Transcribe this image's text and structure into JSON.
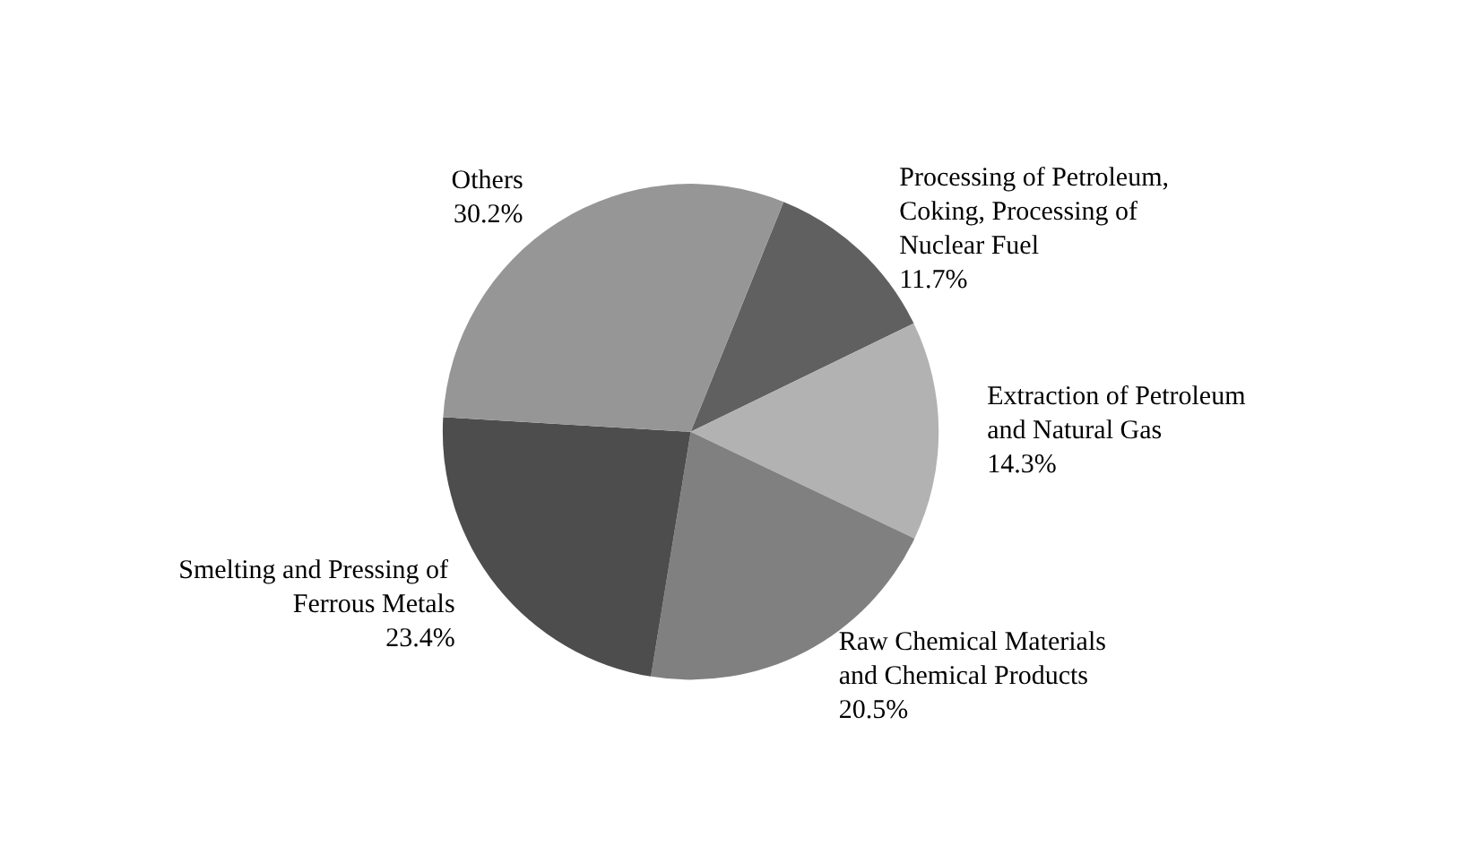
{
  "chart_data": {
    "type": "pie",
    "categories": [
      "Processing of Petroleum, Coking, Processing of Nuclear Fuel",
      "Extraction of Petroleum and Natural Gas",
      "Raw Chemical Materials and Chemical Products",
      "Smelting and Pressing of Ferrous Metals",
      "Others"
    ],
    "values": [
      11.7,
      14.3,
      20.5,
      23.4,
      30.2
    ],
    "colors": [
      "#606060",
      "#b2b2b2",
      "#808080",
      "#4d4d4d",
      "#969696"
    ],
    "value_labels": [
      "11.7%",
      "14.3%",
      "20.5%",
      "23.4%",
      "30.2%"
    ],
    "legend": false
  }
}
